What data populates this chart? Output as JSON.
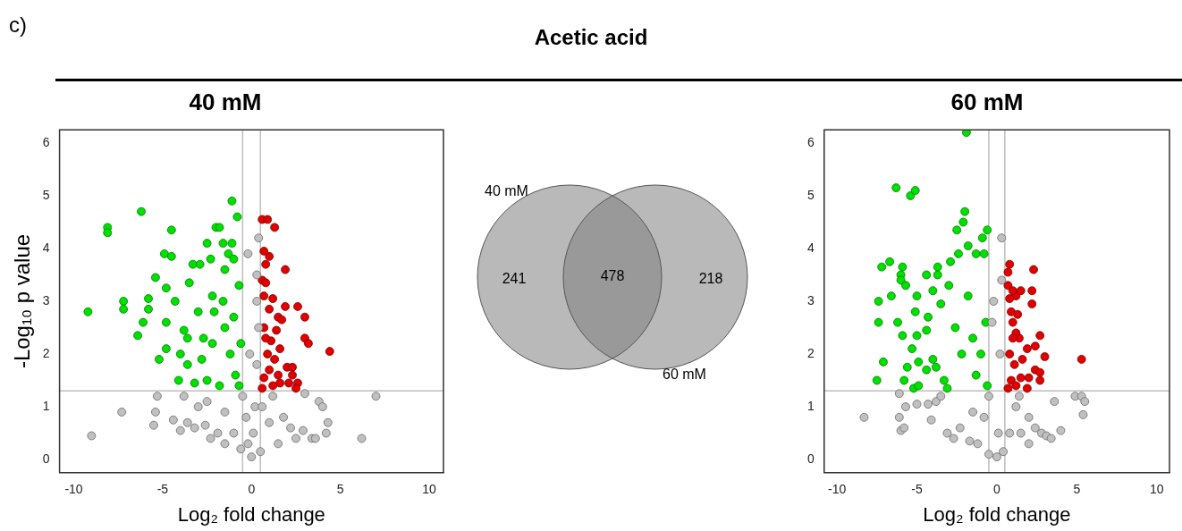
{
  "chart_data": [
    {
      "type": "other",
      "title": "Acetic acid",
      "annotations": [
        "c)"
      ]
    },
    {
      "type": "scatter",
      "title": "40 mM",
      "xlabel": "Log₂ fold change",
      "ylabel": "-Log₁₀ p value",
      "xlim": [
        -10.8,
        10.8
      ],
      "ylim": [
        -0.25,
        6.25
      ],
      "xticks": [
        -10,
        -5,
        0,
        5,
        10
      ],
      "yticks": [
        0,
        1,
        2,
        3,
        4,
        5,
        6
      ],
      "grid": false,
      "legend": false,
      "marker": "circle",
      "ref_lines": [
        {
          "axis": "x",
          "value": -0.5,
          "color": "#bebebe"
        },
        {
          "axis": "x",
          "value": 0.5,
          "color": "#bebebe"
        },
        {
          "axis": "y",
          "value": 1.3,
          "color": "#bebebe"
        }
      ],
      "series": [
        {
          "color": "#c0c0c0",
          "x": [
            -9.0,
            -7.3,
            -5.3,
            -5.4,
            -5.5,
            -4.4,
            -4.0,
            -3.6,
            -3.2,
            -2.6,
            -2.3,
            -3.8,
            -3.0,
            -2.5,
            -1.9,
            -1.5,
            -1.0,
            -0.5,
            -0.3,
            -0.2,
            0,
            0.1,
            0.2,
            0.3,
            0.4,
            0.3,
            0.4,
            0.3,
            -0.2,
            -0.1,
            0.6,
            1.0,
            1.5,
            1.8,
            2.2,
            2.5,
            2.9,
            3.0,
            3.4,
            3.6,
            3.8,
            4.0,
            4.3,
            4.2,
            6.2,
            7.0,
            -0.6,
            0.5,
            1.2,
            -1.5
          ],
          "values": [
            0.45,
            0.9,
            1.2,
            0.9,
            0.65,
            0.75,
            0.55,
            0.7,
            0.6,
            0.65,
            0.4,
            1.2,
            1.0,
            1.1,
            0.5,
            0.9,
            0.5,
            1.2,
            0.8,
            0.3,
            0.05,
            0.5,
            1.0,
            1.8,
            2.5,
            3.0,
            4.2,
            3.5,
            3.9,
            2.0,
            1.0,
            0.7,
            0.3,
            0.8,
            0.6,
            0.4,
            0.55,
            1.25,
            0.4,
            0.4,
            1.1,
            1.0,
            0.7,
            0.5,
            0.4,
            1.2,
            0.2,
            0.15,
            1.2,
            0.3
          ]
        },
        {
          "color": "#00e000",
          "x": [
            -9.2,
            -8.1,
            -8.1,
            -7.2,
            -7.2,
            -6.2,
            -6.4,
            -6.1,
            -5.8,
            -5.8,
            -5.4,
            -5.2,
            -4.9,
            -4.8,
            -4.8,
            -4.5,
            -4.5,
            -4.8,
            -4.3,
            -4.1,
            -4.0,
            -3.8,
            -3.6,
            -3.5,
            -3.3,
            -3.2,
            -3.0,
            -2.9,
            -2.7,
            -2.5,
            -2.5,
            -2.3,
            -2.2,
            -2.1,
            -2.0,
            -1.8,
            -1.6,
            -1.5,
            -1.3,
            -1.1,
            -1.0,
            -1.1,
            -0.8,
            -0.7,
            -1.5,
            -1.2,
            -0.9,
            -1.8,
            -0.6,
            -1.6,
            -2.8,
            -3.6,
            -1.0,
            -0.7,
            -2.2
          ],
          "values": [
            2.8,
            4.4,
            4.3,
            3.0,
            2.85,
            4.7,
            2.35,
            2.6,
            3.05,
            2.85,
            3.45,
            1.9,
            3.9,
            3.25,
            2.6,
            4.35,
            3.85,
            2.1,
            3.0,
            1.5,
            2.0,
            2.45,
            1.8,
            3.35,
            3.7,
            1.45,
            2.8,
            3.7,
            2.3,
            4.1,
            1.5,
            3.8,
            3.1,
            2.8,
            4.4,
            4.4,
            4.1,
            3.6,
            3.9,
            4.1,
            3.8,
            4.9,
            4.6,
            3.3,
            2.5,
            2.0,
            1.6,
            1.4,
            2.2,
            3.0,
            1.9,
            2.3,
            2.7,
            1.4,
            2.2
          ]
        },
        {
          "color": "#e00000",
          "x": [
            0.6,
            0.9,
            1.3,
            0.7,
            1.0,
            0.8,
            1.9,
            0.6,
            0.8,
            0.7,
            1.2,
            1.9,
            2.6,
            3.0,
            1.0,
            1.5,
            1.7,
            0.7,
            1.4,
            3.0,
            3.2,
            1.1,
            1.6,
            4.4,
            0.9,
            1.3,
            1.0,
            2.0,
            2.3,
            0.7,
            1.5,
            2.3,
            1.6,
            2.1,
            2.6,
            2.5,
            0.6,
            1.2,
            0.8
          ],
          "values": [
            4.55,
            4.55,
            4.4,
            3.95,
            3.85,
            3.7,
            3.6,
            3.4,
            3.35,
            3.1,
            3.05,
            2.9,
            2.9,
            2.7,
            2.85,
            2.7,
            2.65,
            2.5,
            2.45,
            2.3,
            2.2,
            2.25,
            2.1,
            2.05,
            2.0,
            1.9,
            1.7,
            1.75,
            1.75,
            1.55,
            1.6,
            1.6,
            1.45,
            1.45,
            1.45,
            1.35,
            1.35,
            1.4,
            2.3
          ]
        }
      ]
    },
    {
      "type": "other",
      "categories": [
        null,
        null,
        null
      ],
      "values": [
        241,
        478,
        218
      ],
      "data_labels": true,
      "annotations": [
        "40 mM",
        "60 mM"
      ],
      "color": "#808080"
    },
    {
      "type": "scatter",
      "title": "60 mM",
      "xlabel": "Log₂ fold change",
      "xlim": [
        -10.8,
        10.8
      ],
      "ylim": [
        -0.25,
        6.25
      ],
      "xticks": [
        -10,
        -5,
        0,
        5,
        10
      ],
      "yticks": [
        0,
        1,
        2,
        3,
        4,
        5,
        6
      ],
      "grid": false,
      "legend": false,
      "marker": "circle",
      "ref_lines": [
        {
          "axis": "x",
          "value": -0.5,
          "color": "#bebebe"
        },
        {
          "axis": "x",
          "value": 0.5,
          "color": "#bebebe"
        },
        {
          "axis": "y",
          "value": 1.3,
          "color": "#bebebe"
        }
      ],
      "series": [
        {
          "color": "#c0c0c0",
          "x": [
            -8.3,
            -6.1,
            -6.1,
            -6.0,
            -5.8,
            -5.7,
            -5.0,
            -4.3,
            -4.1,
            -3.8,
            -3.5,
            -3.1,
            -2.7,
            -2.3,
            -1.7,
            -1.2,
            -0.8,
            -0.5,
            -0.3,
            -0.2,
            0.3,
            0.3,
            0.2,
            0.1,
            0,
            -0.5,
            0.4,
            0.8,
            1.2,
            1.5,
            2.0,
            2.0,
            2.4,
            2.8,
            3.1,
            3.4,
            3.6,
            4.0,
            4.9,
            5.3,
            5.5,
            5.4,
            1.4,
            -1.5
          ],
          "values": [
            0.8,
            1.25,
            0.8,
            0.55,
            0.6,
            1.0,
            1.05,
            1.05,
            0.75,
            1.1,
            1.2,
            0.5,
            0.4,
            0.6,
            0.35,
            0.3,
            0.8,
            1.2,
            2.6,
            3.0,
            3.4,
            4.2,
            2.0,
            0.5,
            0.05,
            0.1,
            0.15,
            0.5,
            1.0,
            0.5,
            0.8,
            0.3,
            0.6,
            0.5,
            0.45,
            0.4,
            1.1,
            0.55,
            1.2,
            1.2,
            1.1,
            0.85,
            1.2,
            0.9
          ]
        },
        {
          "color": "#00e000",
          "x": [
            -1.9,
            -6.3,
            -5.4,
            -5.1,
            -2.0,
            -2.1,
            -2.5,
            -1.8,
            -0.6,
            -0.9,
            -6.7,
            -7.2,
            -5.9,
            -6.0,
            -6.0,
            -5.7,
            -4.4,
            -3.7,
            -3.7,
            -2.9,
            -2.4,
            -1.3,
            -0.8,
            -7.4,
            -6.6,
            -5.0,
            -4.0,
            -3.0,
            -7.4,
            -6.2,
            -5.9,
            -5.0,
            -5.1,
            -4.3,
            -3.5,
            -5.3,
            -4.4,
            -7.1,
            -5.6,
            -4.9,
            -7.5,
            -5.8,
            -5.2,
            -4.9,
            -4.4,
            -4.0,
            -3.8,
            -3.3,
            -3.1,
            -2.6,
            -1.5,
            -1.0,
            -1.3,
            -0.7,
            -1.8,
            -2.2,
            -0.6
          ],
          "values": [
            6.2,
            5.15,
            5.0,
            5.1,
            4.7,
            4.5,
            4.35,
            4.05,
            4.35,
            4.2,
            3.75,
            3.65,
            3.65,
            3.5,
            3.4,
            3.3,
            3.5,
            3.65,
            3.5,
            3.75,
            3.9,
            3.9,
            3.9,
            3.0,
            3.1,
            3.1,
            3.2,
            3.3,
            2.6,
            2.6,
            2.35,
            2.35,
            2.8,
            2.7,
            2.95,
            2.1,
            2.45,
            1.85,
            1.75,
            1.85,
            1.5,
            1.5,
            1.35,
            1.4,
            1.7,
            1.9,
            1.75,
            1.5,
            1.35,
            2.5,
            2.3,
            2.0,
            1.6,
            2.6,
            3.1,
            2.0,
            1.4
          ]
        },
        {
          "color": "#e00000",
          "x": [
            0.8,
            0.7,
            2.3,
            0.7,
            1.2,
            1.0,
            1.5,
            2.2,
            2.2,
            0.8,
            0.9,
            1.3,
            1.0,
            1.2,
            2.7,
            2.4,
            1.4,
            3.0,
            5.3,
            1.9,
            1.6,
            0.8,
            1.1,
            2.4,
            2.7,
            2.7,
            2.0,
            1.5,
            0.9,
            1.2,
            1.9,
            0.7,
            1.0
          ],
          "values": [
            3.7,
            3.55,
            3.6,
            3.3,
            3.1,
            3.2,
            3.2,
            3.2,
            2.95,
            3.05,
            2.8,
            2.75,
            2.6,
            2.4,
            2.35,
            2.15,
            2.3,
            1.95,
            1.9,
            2.1,
            1.9,
            2.0,
            1.8,
            1.7,
            1.65,
            1.5,
            1.55,
            1.55,
            1.5,
            1.4,
            1.35,
            1.35,
            2.3
          ]
        }
      ]
    }
  ]
}
